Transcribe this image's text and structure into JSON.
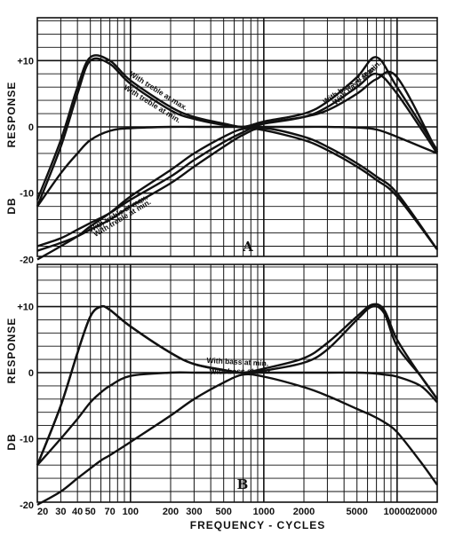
{
  "chart_data": [
    {
      "type": "line",
      "panel_label": "A",
      "xlabel": "FREQUENCY - CYCLES",
      "ylabel": "DB RESPONSE",
      "x_scale": "log",
      "xlim": [
        20,
        20000
      ],
      "ylim": [
        -20,
        16
      ],
      "y_ticks": [
        "+10",
        "0",
        "-10",
        "-20"
      ],
      "y_tick_values": [
        10,
        0,
        -10,
        -20
      ],
      "grid": true,
      "x": [
        20,
        30,
        40,
        50,
        70,
        100,
        200,
        300,
        500,
        700,
        1000,
        2000,
        3000,
        5000,
        7000,
        10000,
        20000
      ],
      "series": [
        {
          "values": [
            -11,
            -2,
            6,
            10.5,
            10,
            7,
            3,
            1.5,
            0.5,
            0,
            0.5,
            1.5,
            3,
            6,
            8,
            5,
            -4
          ]
        },
        {
          "values": [
            -12,
            -3,
            5,
            10,
            9.5,
            6.5,
            2.5,
            1.2,
            0.3,
            0,
            0.8,
            2,
            3.8,
            7.5,
            10.5,
            6,
            -3.5
          ]
        },
        {
          "values": [
            -12,
            -7,
            -4,
            -2,
            -0.6,
            -0.2,
            0,
            0,
            0,
            0,
            0,
            0,
            0,
            -0.1,
            -0.4,
            -1.5,
            -4
          ]
        },
        {
          "values": [
            -18,
            -16.8,
            -15.5,
            -14.5,
            -13,
            -11,
            -7.5,
            -5,
            -2.3,
            -0.8,
            0.5,
            1.5,
            2.5,
            5,
            7.2,
            7.5,
            -3.8
          ]
        },
        {
          "values": [
            -18.7,
            -17.5,
            -16.5,
            -15.5,
            -14,
            -12,
            -8.5,
            -6,
            -3,
            -1.2,
            -0.2,
            -1.5,
            -3,
            -5.5,
            -7.5,
            -10,
            -18.5
          ]
        },
        {
          "values": [
            -20,
            -18,
            -16.5,
            -15,
            -13,
            -10.5,
            -6.5,
            -4,
            -1.5,
            -0.3,
            -0.5,
            -2,
            -3.5,
            -6,
            -8,
            -10.5,
            -18.5
          ]
        }
      ],
      "annotations": [
        "With treble at max.",
        "With treble at min.",
        "With bass at min.",
        "With bass at max.",
        "With treble at max.",
        "With treble at min."
      ]
    },
    {
      "type": "line",
      "panel_label": "B",
      "xlabel": "FREQUENCY - CYCLES",
      "ylabel": "DB RESPONSE",
      "x_scale": "log",
      "xlim": [
        20,
        20000
      ],
      "ylim": [
        -20,
        16
      ],
      "y_ticks": [
        "+10",
        "0",
        "-10",
        "-20"
      ],
      "y_tick_values": [
        10,
        0,
        -10,
        -20
      ],
      "x_ticks": [
        "20",
        "30",
        "40",
        "50",
        "70",
        "100",
        "200",
        "300",
        "500",
        "1000",
        "2000",
        "5000",
        "10000",
        "20000"
      ],
      "x_tick_values": [
        20,
        30,
        40,
        50,
        70,
        100,
        200,
        300,
        500,
        1000,
        2000,
        5000,
        10000,
        20000
      ],
      "grid": true,
      "x": [
        20,
        30,
        40,
        50,
        60,
        70,
        100,
        200,
        300,
        500,
        700,
        1000,
        2000,
        3000,
        5000,
        6500,
        8000,
        10000,
        15000,
        20000
      ],
      "series": [
        {
          "values": [
            -14,
            -5,
            3,
            8.5,
            10,
            9.5,
            7,
            3,
            1.3,
            0.4,
            0,
            0.3,
            1.5,
            3.5,
            8,
            10,
            9,
            4,
            -0.5,
            -4
          ]
        },
        {
          "values": [
            -14,
            -5,
            3,
            8.5,
            10,
            9.5,
            7,
            3,
            1.3,
            0.4,
            0,
            0.6,
            2.2,
            4.5,
            8.5,
            10.3,
            9.5,
            5,
            -0.5,
            -4
          ]
        },
        {
          "values": [
            -14,
            -10,
            -7,
            -4.5,
            -3,
            -2,
            -0.5,
            0,
            0,
            0,
            0,
            0,
            0,
            0,
            0,
            -0.1,
            -0.3,
            -0.6,
            -2,
            -4.5
          ]
        },
        {
          "values": [
            -20,
            -18,
            -16,
            -14.5,
            -13.3,
            -12.5,
            -10.5,
            -6.5,
            -4,
            -1.5,
            -0.3,
            -0.6,
            -2.2,
            -3.5,
            -5.5,
            -6.5,
            -7.5,
            -9,
            -13.5,
            -17
          ]
        }
      ],
      "annotations": [
        "With bass at min.",
        "With bass at max."
      ]
    }
  ]
}
